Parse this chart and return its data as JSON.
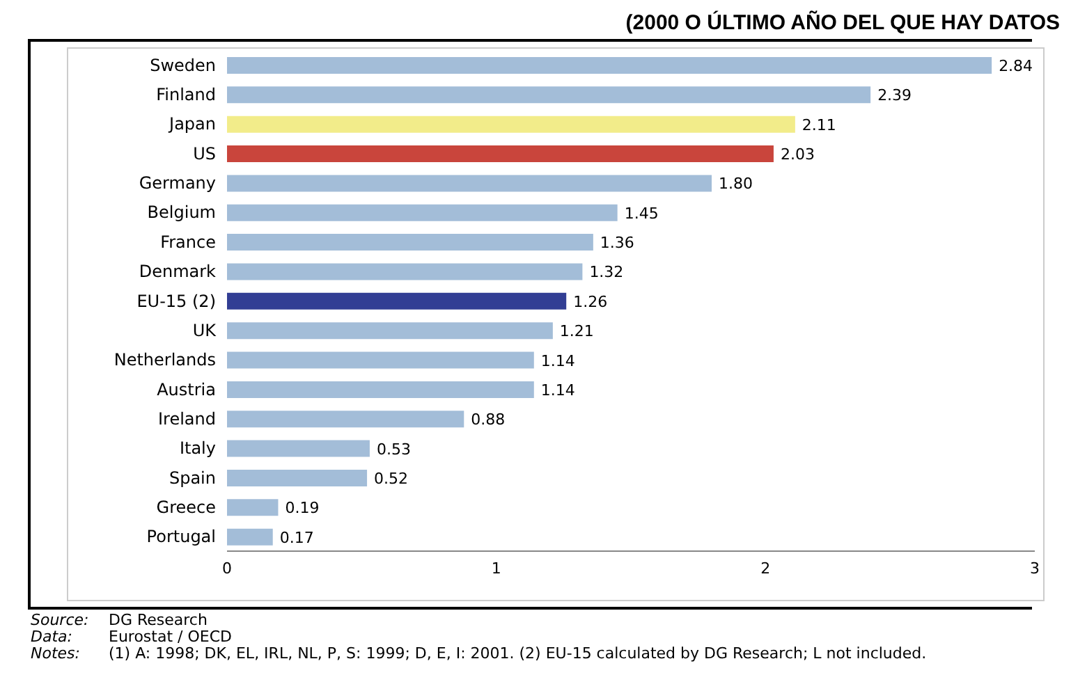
{
  "chart_data": {
    "type": "bar",
    "orientation": "horizontal",
    "title": "(2000 O ÚLTIMO AÑO DEL QUE HAY DATOS",
    "categories": [
      "Sweden",
      "Finland",
      "Japan",
      "US",
      "Germany",
      "Belgium",
      "France",
      "Denmark",
      "EU-15 (2)",
      "UK",
      "Netherlands",
      "Austria",
      "Ireland",
      "Italy",
      "Spain",
      "Greece",
      "Portugal"
    ],
    "values": [
      2.84,
      2.39,
      2.11,
      2.03,
      1.8,
      1.45,
      1.36,
      1.32,
      1.26,
      1.21,
      1.14,
      1.14,
      0.88,
      0.53,
      0.52,
      0.19,
      0.17
    ],
    "colors": [
      "#a3bdd8",
      "#a3bdd8",
      "#f2ec8a",
      "#c9453c",
      "#a3bdd8",
      "#a3bdd8",
      "#a3bdd8",
      "#a3bdd8",
      "#323e94",
      "#a3bdd8",
      "#a3bdd8",
      "#a3bdd8",
      "#a3bdd8",
      "#a3bdd8",
      "#a3bdd8",
      "#a3bdd8",
      "#a3bdd8"
    ],
    "value_labels": [
      "2.84",
      "2.39",
      "2.11",
      "2.03",
      "1.80",
      "1.45",
      "1.36",
      "1.32",
      "1.26",
      "1.21",
      "1.14",
      "1.14",
      "0.88",
      "0.53",
      "0.52",
      "0.19",
      "0.17"
    ],
    "xlim": [
      0,
      3
    ],
    "xticks": [
      0,
      1,
      2,
      3
    ],
    "grid": false,
    "annotations": [
      "Source: DG Research",
      "Data: Eurostat / OECD",
      "Notes: (1) A: 1998; DK, EL, IRL, NL, P, S: 1999; D, E, I: 2001. (2) EU-15 calculated by DG Research; L not included."
    ]
  }
}
